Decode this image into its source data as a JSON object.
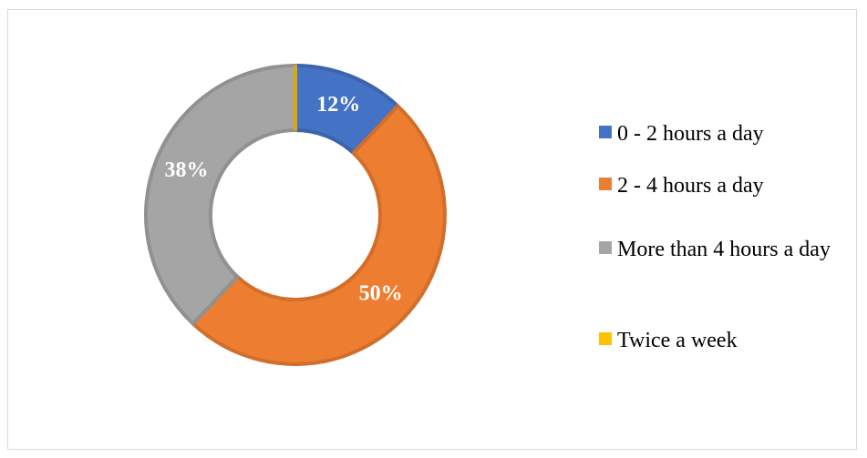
{
  "chart_data": {
    "type": "donut",
    "categories": [
      "0 - 2 hours a day",
      "2 - 4 hours a day",
      "More than 4 hours a day",
      "Twice a week"
    ],
    "values": [
      12,
      50,
      38,
      0
    ],
    "value_labels": [
      "12%",
      "50%",
      "38%",
      null
    ],
    "colors": [
      "#4472c4",
      "#ed7d31",
      "#a5a5a5",
      "#ffc000"
    ],
    "legend": "right"
  }
}
